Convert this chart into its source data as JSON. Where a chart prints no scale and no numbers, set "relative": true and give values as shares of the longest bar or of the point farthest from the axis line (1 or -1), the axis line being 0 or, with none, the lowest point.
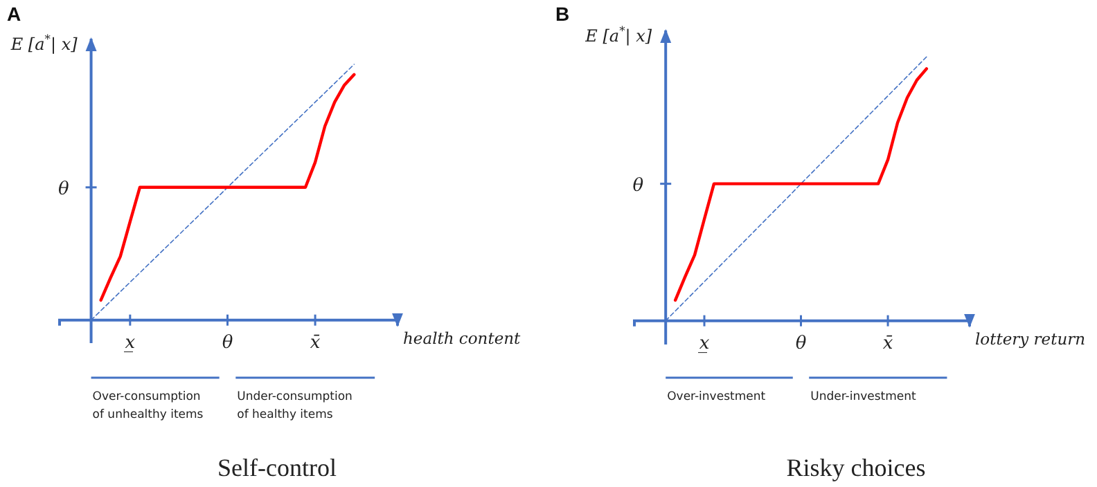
{
  "chart_data": [
    {
      "type": "line",
      "title": "Self-control",
      "xlabel": "health content",
      "ylabel": "E [a$^{*}$| x]",
      "relative": true,
      "categories": [
        null,
        null,
        null,
        null,
        "x̲",
        null,
        null,
        null,
        null,
        null,
        null,
        null,
        null,
        null,
        "θ",
        null,
        null,
        null,
        null,
        null,
        null,
        null,
        null,
        "x̄",
        null,
        null,
        null,
        null
      ],
      "annotations": [
        "A",
        "Over-consumption of unhealthy items",
        "Under-consumption of healthy items",
        "θ"
      ],
      "series": [
        {
          "color": "#4472c4",
          "line_style": "dashed",
          "values": [
            0,
            0.037,
            0.074,
            0.111,
            0.148,
            0.185,
            0.222,
            0.259,
            0.296,
            0.333,
            0.37,
            0.407,
            0.444,
            0.481,
            0.519,
            0.556,
            0.593,
            0.63,
            0.667,
            0.704,
            0.741,
            0.778,
            0.815,
            0.852,
            0.889,
            0.926,
            0.963,
            1
          ]
        },
        {
          "color": "#ff0000",
          "line_style": "solid",
          "values": [
            null,
            0.078,
            0.166,
            0.249,
            0.385,
            0.519,
            0.519,
            0.519,
            0.519,
            0.519,
            0.519,
            0.519,
            0.519,
            0.519,
            0.519,
            0.519,
            0.519,
            0.519,
            0.519,
            0.519,
            0.519,
            0.519,
            0.519,
            0.617,
            0.758,
            0.852,
            0.919,
            0.96
          ]
        }
      ]
    },
    {
      "type": "line",
      "title": "Risky choices",
      "xlabel": "lottery return",
      "ylabel": "E [a$^{*}$| x]",
      "relative": true,
      "categories": [
        null,
        null,
        null,
        null,
        "x̲",
        null,
        null,
        null,
        null,
        null,
        null,
        null,
        null,
        null,
        "θ",
        null,
        null,
        null,
        null,
        null,
        null,
        null,
        null,
        "x̄",
        null,
        null,
        null,
        null
      ],
      "annotations": [
        "B",
        "Over-investment",
        "Under-investment",
        "θ"
      ],
      "series": [
        {
          "color": "#4472c4",
          "line_style": "dashed",
          "values": [
            0,
            0.037,
            0.074,
            0.111,
            0.148,
            0.185,
            0.222,
            0.259,
            0.296,
            0.333,
            0.37,
            0.407,
            0.444,
            0.481,
            0.519,
            0.556,
            0.593,
            0.63,
            0.667,
            0.704,
            0.741,
            0.778,
            0.815,
            0.852,
            0.889,
            0.926,
            0.963,
            1
          ]
        },
        {
          "color": "#ff0000",
          "line_style": "solid",
          "values": [
            null,
            0.078,
            0.166,
            0.249,
            0.385,
            0.519,
            0.519,
            0.519,
            0.519,
            0.519,
            0.519,
            0.519,
            0.519,
            0.519,
            0.519,
            0.519,
            0.519,
            0.519,
            0.519,
            0.519,
            0.519,
            0.519,
            0.519,
            0.61,
            0.75,
            0.845,
            0.912,
            0.955
          ]
        }
      ]
    }
  ]
}
